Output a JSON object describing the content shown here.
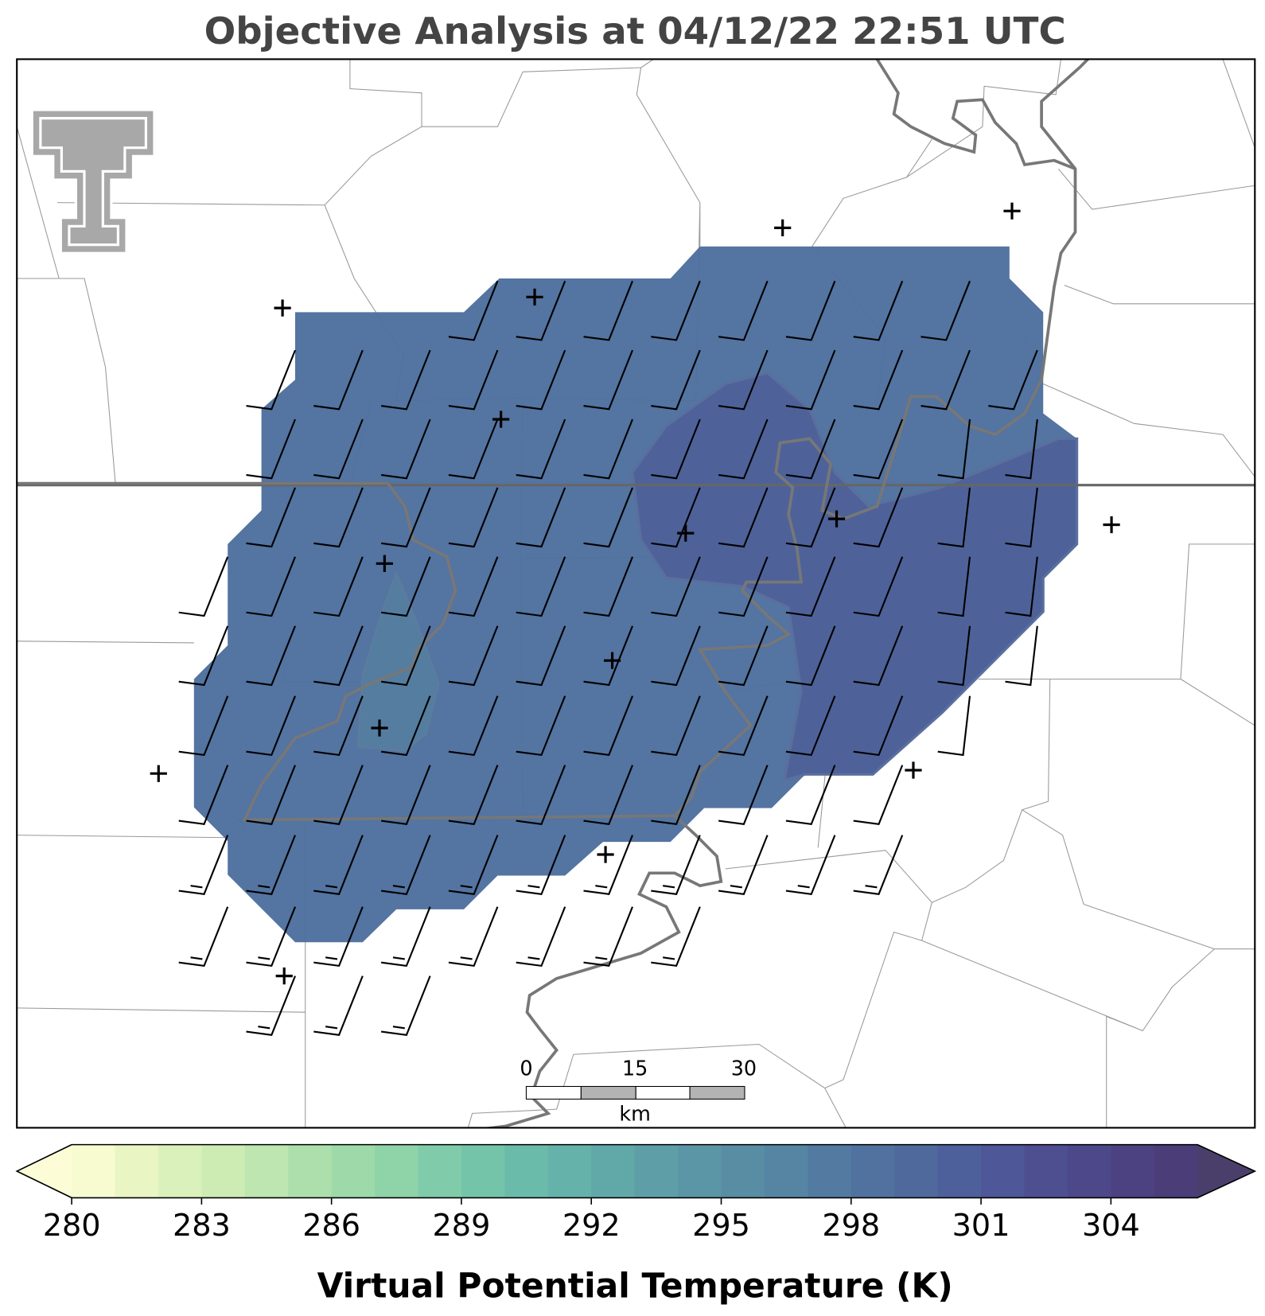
{
  "title": "Objective Analysis at 04/12/22 22:51 UTC",
  "scale_bar": {
    "ticks": [
      0,
      15,
      30
    ],
    "unit": "km"
  },
  "colorbar": {
    "label": "Virtual Potential Temperature (K)",
    "range": [
      280,
      306
    ],
    "ticks": [
      280,
      283,
      286,
      289,
      292,
      295,
      298,
      301,
      304
    ],
    "under_color": "#fcfdd6",
    "over_color": "#4a3f6b",
    "colors": [
      "#f7fbcf",
      "#e9f6c4",
      "#dbf1bb",
      "#cdecb4",
      "#bde6b0",
      "#acdfac",
      "#9ed9aa",
      "#8fd3a9",
      "#80ccaa",
      "#74c4aa",
      "#6bbbab",
      "#65b2aa",
      "#61a8a9",
      "#5e9fa7",
      "#5b96a6",
      "#588da4",
      "#5684a3",
      "#537ba1",
      "#51729f",
      "#4f699d",
      "#4d609b",
      "#4e5797",
      "#4e4f91",
      "#4d488a",
      "#4c4282",
      "#4a3d78"
    ]
  }
}
